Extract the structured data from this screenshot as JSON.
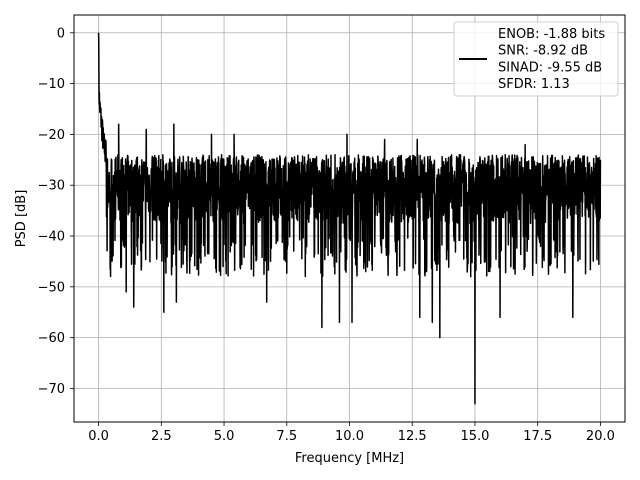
{
  "chart_data": {
    "type": "line",
    "title": "",
    "xlabel": "Frequency [MHz]",
    "ylabel": "PSD [dB]",
    "xlim": [
      -0.98,
      20.98
    ],
    "ylim": [
      -76.6,
      3.5
    ],
    "x_ticks": [
      0.0,
      2.5,
      5.0,
      7.5,
      10.0,
      12.5,
      15.0,
      17.5,
      20.0
    ],
    "x_tick_labels": [
      "0.0",
      "2.5",
      "5.0",
      "7.5",
      "10.0",
      "12.5",
      "15.0",
      "17.5",
      "20.0"
    ],
    "y_ticks": [
      0,
      -10,
      -20,
      -30,
      -40,
      -50,
      -60,
      -70
    ],
    "y_tick_labels": [
      "0",
      "−10",
      "−20",
      "−30",
      "−40",
      "−50",
      "−60",
      "−70"
    ],
    "grid": true,
    "legend_position": "top-right",
    "series": [
      {
        "name": "ENOB: -1.88 bits\nSNR: -8.92 dB\nSINAD: -9.55 dB\nSFDR: 1.13",
        "color": "#000000",
        "description_points": {
          "x_start": 0.0,
          "x_end": 20.0,
          "peak": {
            "x": 0.0,
            "y": 0.0
          },
          "initial_rolloff": [
            [
              0.0,
              0.0
            ],
            [
              0.02,
              -12
            ],
            [
              0.05,
              -15
            ],
            [
              0.1,
              -17
            ],
            [
              0.2,
              -22
            ],
            [
              0.3,
              -24
            ]
          ],
          "noise_band_upper": -24,
          "noise_band_lower": -40,
          "notable_minima": [
            {
              "x": 1.1,
              "y": -51
            },
            {
              "x": 1.4,
              "y": -54
            },
            {
              "x": 2.6,
              "y": -55
            },
            {
              "x": 3.1,
              "y": -53
            },
            {
              "x": 6.7,
              "y": -53
            },
            {
              "x": 8.9,
              "y": -58
            },
            {
              "x": 9.6,
              "y": -57
            },
            {
              "x": 10.1,
              "y": -57
            },
            {
              "x": 12.8,
              "y": -56
            },
            {
              "x": 13.3,
              "y": -57
            },
            {
              "x": 13.6,
              "y": -60
            },
            {
              "x": 15.0,
              "y": -73
            },
            {
              "x": 16.0,
              "y": -56
            },
            {
              "x": 18.9,
              "y": -56
            }
          ],
          "notable_maxima": [
            {
              "x": 0.8,
              "y": -18
            },
            {
              "x": 1.9,
              "y": -19
            },
            {
              "x": 3.0,
              "y": -18
            },
            {
              "x": 4.5,
              "y": -20
            },
            {
              "x": 5.4,
              "y": -20
            },
            {
              "x": 9.9,
              "y": -20
            },
            {
              "x": 11.4,
              "y": -21
            },
            {
              "x": 12.7,
              "y": -21
            },
            {
              "x": 17.0,
              "y": -22
            },
            {
              "x": 20.0,
              "y": -25
            }
          ]
        }
      }
    ]
  }
}
